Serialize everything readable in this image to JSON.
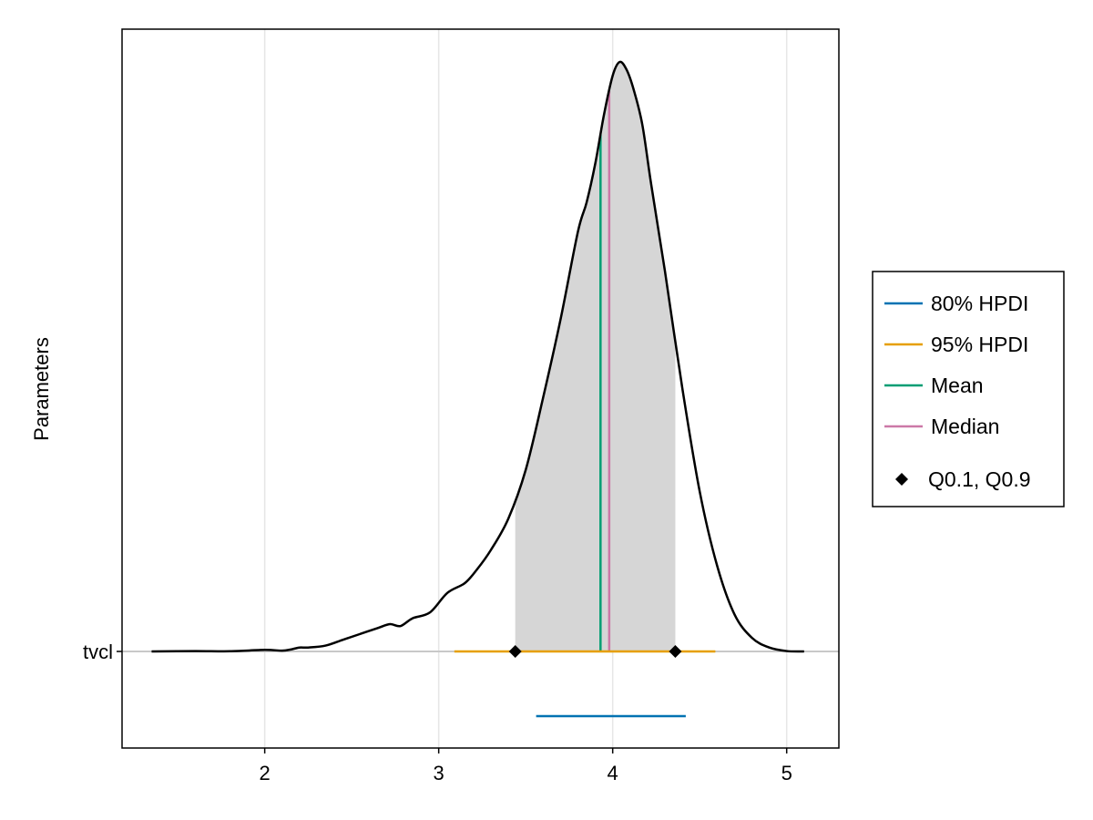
{
  "chart_data": {
    "type": "density",
    "ylabel": "Parameters",
    "xlim": [
      1.18,
      5.3
    ],
    "xticks": [
      2,
      3,
      4,
      5
    ],
    "grid": true,
    "legend_position": "right",
    "parameters": [
      "tvcl"
    ],
    "density": {
      "x": [
        1.35,
        1.6,
        1.8,
        2.0,
        2.1,
        2.15,
        2.2,
        2.25,
        2.35,
        2.45,
        2.55,
        2.65,
        2.72,
        2.78,
        2.85,
        2.95,
        3.05,
        3.15,
        3.22,
        3.3,
        3.4,
        3.5,
        3.6,
        3.7,
        3.8,
        3.85,
        3.9,
        3.95,
        4.0,
        4.04,
        4.08,
        4.12,
        4.17,
        4.22,
        4.3,
        4.4,
        4.5,
        4.6,
        4.7,
        4.8,
        4.9,
        5.0,
        5.1
      ],
      "y": [
        0.0,
        0.002,
        0.001,
        0.008,
        0.004,
        0.01,
        0.02,
        0.02,
        0.03,
        0.06,
        0.09,
        0.12,
        0.14,
        0.13,
        0.17,
        0.2,
        0.3,
        0.35,
        0.42,
        0.52,
        0.68,
        0.93,
        1.3,
        1.7,
        2.15,
        2.3,
        2.5,
        2.75,
        2.95,
        3.02,
        2.98,
        2.88,
        2.7,
        2.4,
        1.95,
        1.35,
        0.82,
        0.44,
        0.19,
        0.07,
        0.02,
        0.002,
        0.0
      ],
      "shade_range": [
        3.44,
        4.36
      ]
    },
    "series": [
      {
        "name": "80% HPDI",
        "color": "#0072b2",
        "range": [
          3.56,
          4.42
        ]
      },
      {
        "name": "95% HPDI",
        "color": "#e69f00",
        "range": [
          3.09,
          4.59
        ]
      },
      {
        "name": "Mean",
        "color": "#009e73",
        "value": 3.93
      },
      {
        "name": "Median",
        "color": "#cc79a7",
        "value": 3.98
      },
      {
        "name": "Q0.1, Q0.9",
        "color": "#000000",
        "values": [
          3.44,
          4.36
        ]
      }
    ],
    "colors": {
      "shade": "#d6d6d6",
      "grid": "#e6e6e6",
      "baseline": "#c8c8c8",
      "density": "#000000"
    }
  }
}
